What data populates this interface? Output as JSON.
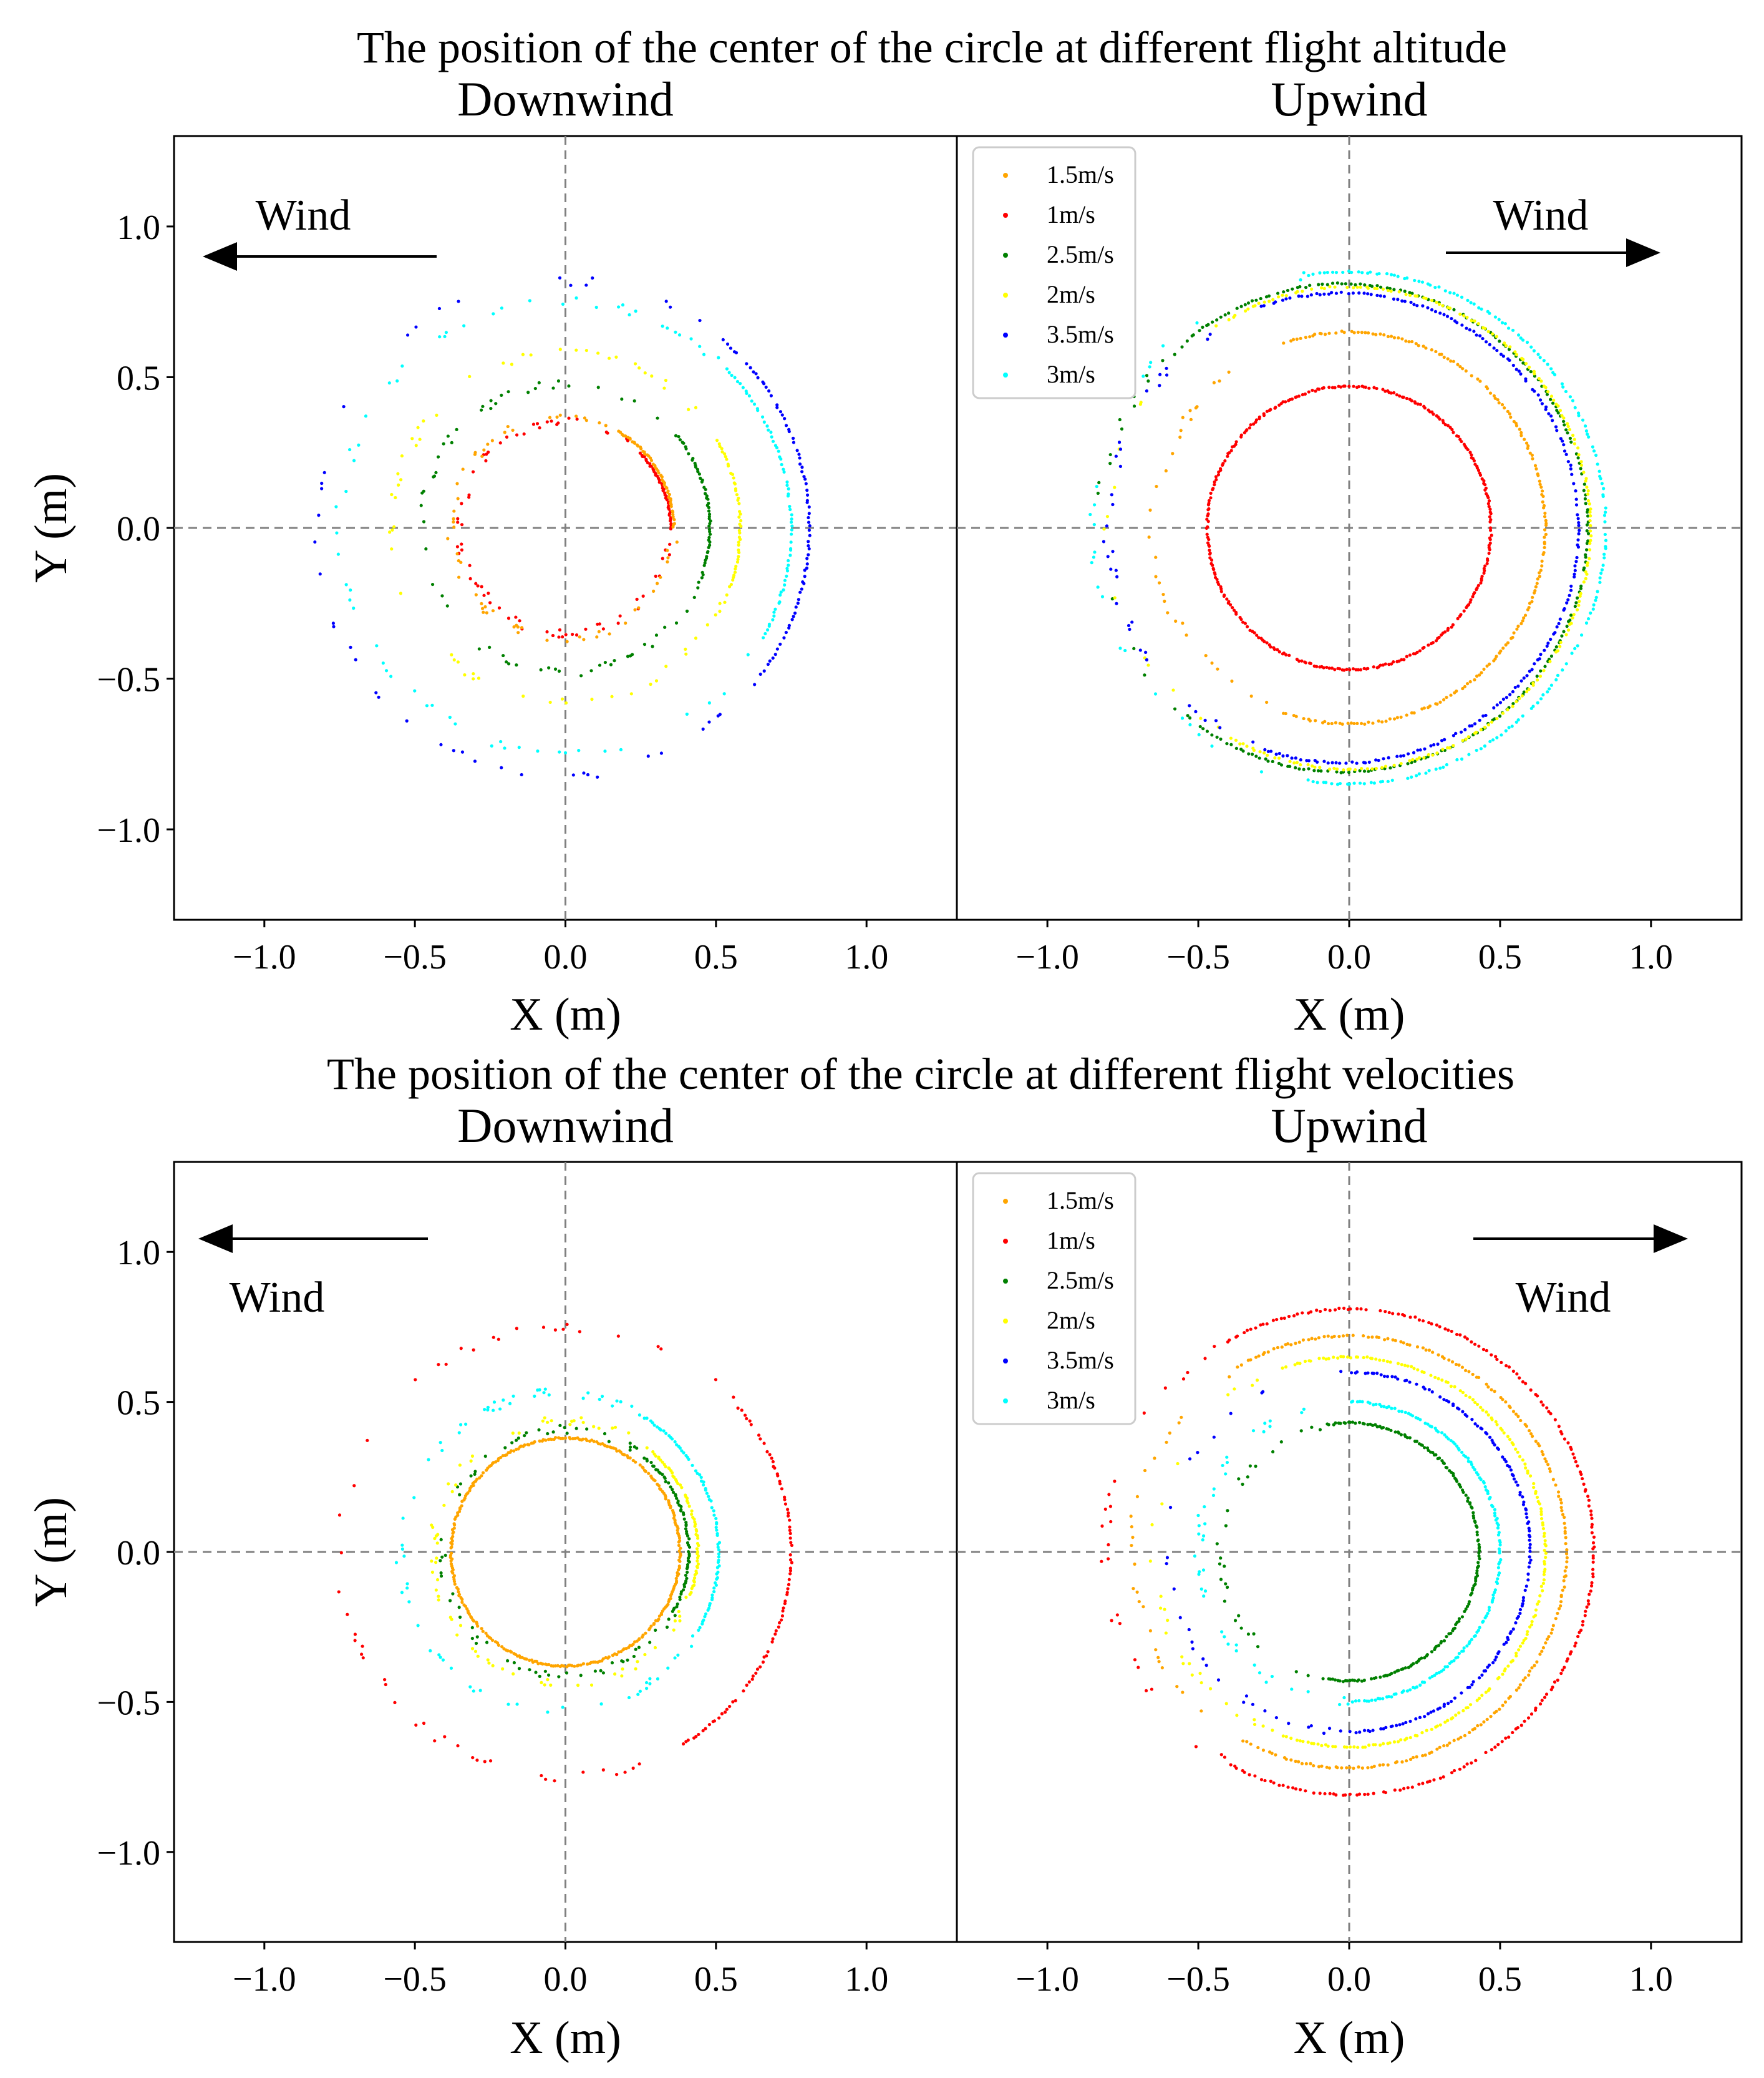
{
  "figure": {
    "colors": {
      "1.5m/s": "#ffa500",
      "1m/s": "#ff0000",
      "2.5m/s": "#008000",
      "2m/s": "#ffff00",
      "3.5m/s": "#0000ff",
      "3m/s": "#00ffff"
    },
    "wind_label": "Wind",
    "rows": [
      {
        "title": "The position of the center of the circle at different flight altitude"
      },
      {
        "title": "The position of the center of the circle at different flight velocities"
      }
    ]
  },
  "chart_data": [
    {
      "type": "scatter",
      "row": 0,
      "panel": "left",
      "title": "Downwind",
      "xlabel": "X (m)",
      "ylabel": "Y (m)",
      "xlim": [
        -1.3,
        1.3
      ],
      "ylim": [
        -1.3,
        1.3
      ],
      "xticks": [
        "−1.0",
        "−0.5",
        "0.0",
        "0.5",
        "1.0"
      ],
      "yticks": [
        "1.0",
        "0.5",
        "0.0",
        "−0.5",
        "−1.0"
      ],
      "wind_direction": "left",
      "legend": null,
      "series": [
        {
          "name": "1m/s",
          "r": 0.35,
          "dx": 0.0,
          "sparse_start": 45,
          "sparse_end": 360
        },
        {
          "name": "1.5m/s",
          "r": 0.37,
          "dx": -0.01,
          "sparse_start": 60,
          "sparse_end": 360
        },
        {
          "name": "2.5m/s",
          "r": 0.48,
          "dx": 0.0,
          "sparse_start": 40,
          "sparse_end": 340
        },
        {
          "name": "2m/s",
          "r": 0.58,
          "dx": 0.0,
          "sparse_start": 30,
          "sparse_end": 340
        },
        {
          "name": "3m/s",
          "r": 0.75,
          "dx": 0.0,
          "sparse_start": 45,
          "sparse_end": 330
        },
        {
          "name": "3.5m/s",
          "r": 0.82,
          "dx": -0.01,
          "sparse_start": 50,
          "sparse_end": 320
        }
      ]
    },
    {
      "type": "scatter",
      "row": 0,
      "panel": "right",
      "title": "Upwind",
      "xlabel": "X (m)",
      "ylabel": "",
      "xlim": [
        -1.3,
        1.3
      ],
      "ylim": [
        -1.3,
        1.3
      ],
      "xticks": [
        "−1.0",
        "−0.5",
        "0.0",
        "0.5",
        "1.0"
      ],
      "yticks": [],
      "wind_direction": "right",
      "legend": "top-left",
      "series": [
        {
          "name": "1.5m/s",
          "r": 0.65,
          "dx": 0.0,
          "sparse_start": 110,
          "sparse_end": 250
        },
        {
          "name": "1m/s",
          "r": 0.47,
          "dx": 0.0,
          "sparse_start": 0,
          "sparse_end": 0
        },
        {
          "name": "2.5m/s",
          "r": 0.81,
          "dx": -0.02,
          "sparse_start": 130,
          "sparse_end": 230
        },
        {
          "name": "2m/s",
          "r": 0.8,
          "dx": 0.0,
          "sparse_start": 120,
          "sparse_end": 240
        },
        {
          "name": "3.5m/s",
          "r": 0.78,
          "dx": -0.02,
          "sparse_start": 110,
          "sparse_end": 250
        },
        {
          "name": "3m/s",
          "r": 0.85,
          "dx": 0.0,
          "sparse_start": 100,
          "sparse_end": 260
        }
      ]
    },
    {
      "type": "scatter",
      "row": 1,
      "panel": "left",
      "title": "Downwind",
      "xlabel": "X (m)",
      "ylabel": "Y (m)",
      "xlim": [
        -1.3,
        1.3
      ],
      "ylim": [
        -1.3,
        1.3
      ],
      "xticks": [
        "−1.0",
        "−0.5",
        "0.0",
        "0.5",
        "1.0"
      ],
      "yticks": [
        "1.0",
        "0.5",
        "0.0",
        "−0.5",
        "−1.0"
      ],
      "wind_direction": "left",
      "legend": null,
      "series": [
        {
          "name": "1m/s",
          "r": 0.75,
          "dx": 0.0,
          "sparse_start": 40,
          "sparse_end": 300
        },
        {
          "name": "1.5m/s",
          "r": 0.38,
          "dx": 0.0,
          "sparse_start": 0,
          "sparse_end": 0
        },
        {
          "name": "2.5m/s",
          "r": 0.41,
          "dx": 0.0,
          "sparse_start": 50,
          "sparse_end": 330
        },
        {
          "name": "2m/s",
          "r": 0.44,
          "dx": 0.0,
          "sparse_start": 50,
          "sparse_end": 340
        },
        {
          "name": "3m/s",
          "r": 0.53,
          "dx": -0.02,
          "sparse_start": 60,
          "sparse_end": 330
        }
      ]
    },
    {
      "type": "scatter",
      "row": 1,
      "panel": "right",
      "title": "Upwind",
      "xlabel": "X (m)",
      "ylabel": "",
      "xlim": [
        -1.3,
        1.3
      ],
      "ylim": [
        -1.3,
        1.3
      ],
      "xticks": [
        "−1.0",
        "−0.5",
        "0.0",
        "0.5",
        "1.0"
      ],
      "yticks": [],
      "wind_direction": "right",
      "legend": "top-left",
      "series": [
        {
          "name": "1.5m/s",
          "r": 0.72,
          "dx": 0.0,
          "sparse_start": 120,
          "sparse_end": 240
        },
        {
          "name": "1m/s",
          "r": 0.81,
          "dx": 0.0,
          "sparse_start": 120,
          "sparse_end": 240
        },
        {
          "name": "2.5m/s",
          "r": 0.43,
          "dx": 0.0,
          "sparse_start": 100,
          "sparse_end": 260
        },
        {
          "name": "2m/s",
          "r": 0.65,
          "dx": 0.0,
          "sparse_start": 110,
          "sparse_end": 250
        },
        {
          "name": "3.5m/s",
          "r": 0.6,
          "dx": 0.0,
          "sparse_start": 90,
          "sparse_end": 270
        },
        {
          "name": "3m/s",
          "r": 0.5,
          "dx": 0.0,
          "sparse_start": 90,
          "sparse_end": 270
        }
      ]
    }
  ]
}
